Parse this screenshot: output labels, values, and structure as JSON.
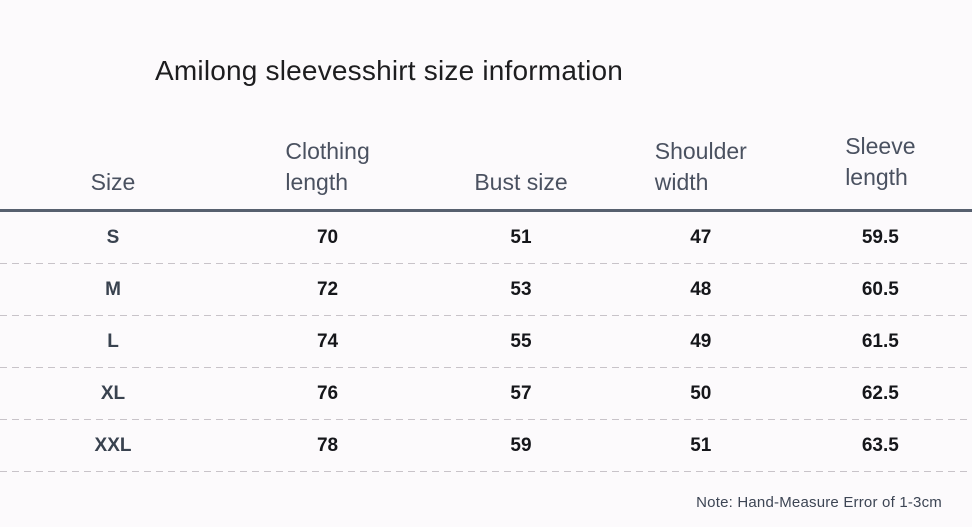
{
  "title": "Amilong sleevesshirt size information",
  "table": {
    "columns": [
      "Size",
      "Clothing length",
      "Bust size",
      "Shoulder width",
      "Sleeve length"
    ],
    "rows": [
      {
        "size": "S",
        "values": [
          "70",
          "51",
          "47",
          "59.5"
        ]
      },
      {
        "size": "M",
        "values": [
          "72",
          "53",
          "48",
          "60.5"
        ]
      },
      {
        "size": "L",
        "values": [
          "74",
          "55",
          "49",
          "61.5"
        ]
      },
      {
        "size": "XL",
        "values": [
          "76",
          "57",
          "50",
          "62.5"
        ]
      },
      {
        "size": "XXL",
        "values": [
          "78",
          "59",
          "51",
          "63.5"
        ]
      }
    ]
  },
  "note": "Note: Hand-Measure Error of 1-3cm",
  "chart_data": {
    "type": "table",
    "title": "Amilong sleevesshirt size information",
    "columns": [
      "Size",
      "Clothing length",
      "Bust size",
      "Shoulder width",
      "Sleeve length"
    ],
    "rows": [
      [
        "S",
        70,
        51,
        47,
        59.5
      ],
      [
        "M",
        72,
        53,
        48,
        60.5
      ],
      [
        "L",
        74,
        55,
        49,
        61.5
      ],
      [
        "XL",
        76,
        57,
        50,
        62.5
      ],
      [
        "XXL",
        78,
        59,
        51,
        63.5
      ]
    ],
    "note": "Note: Hand-Measure Error of 1-3cm"
  },
  "colors": {
    "background": "#fcfafc",
    "title_text": "#1d1d1f",
    "header_text": "#4a5160",
    "size_label": "#39424f",
    "value_text": "#15161a",
    "solid_divider": "#57606f",
    "dashed_divider": "#c8c3c9",
    "note_text": "#3d4554"
  }
}
